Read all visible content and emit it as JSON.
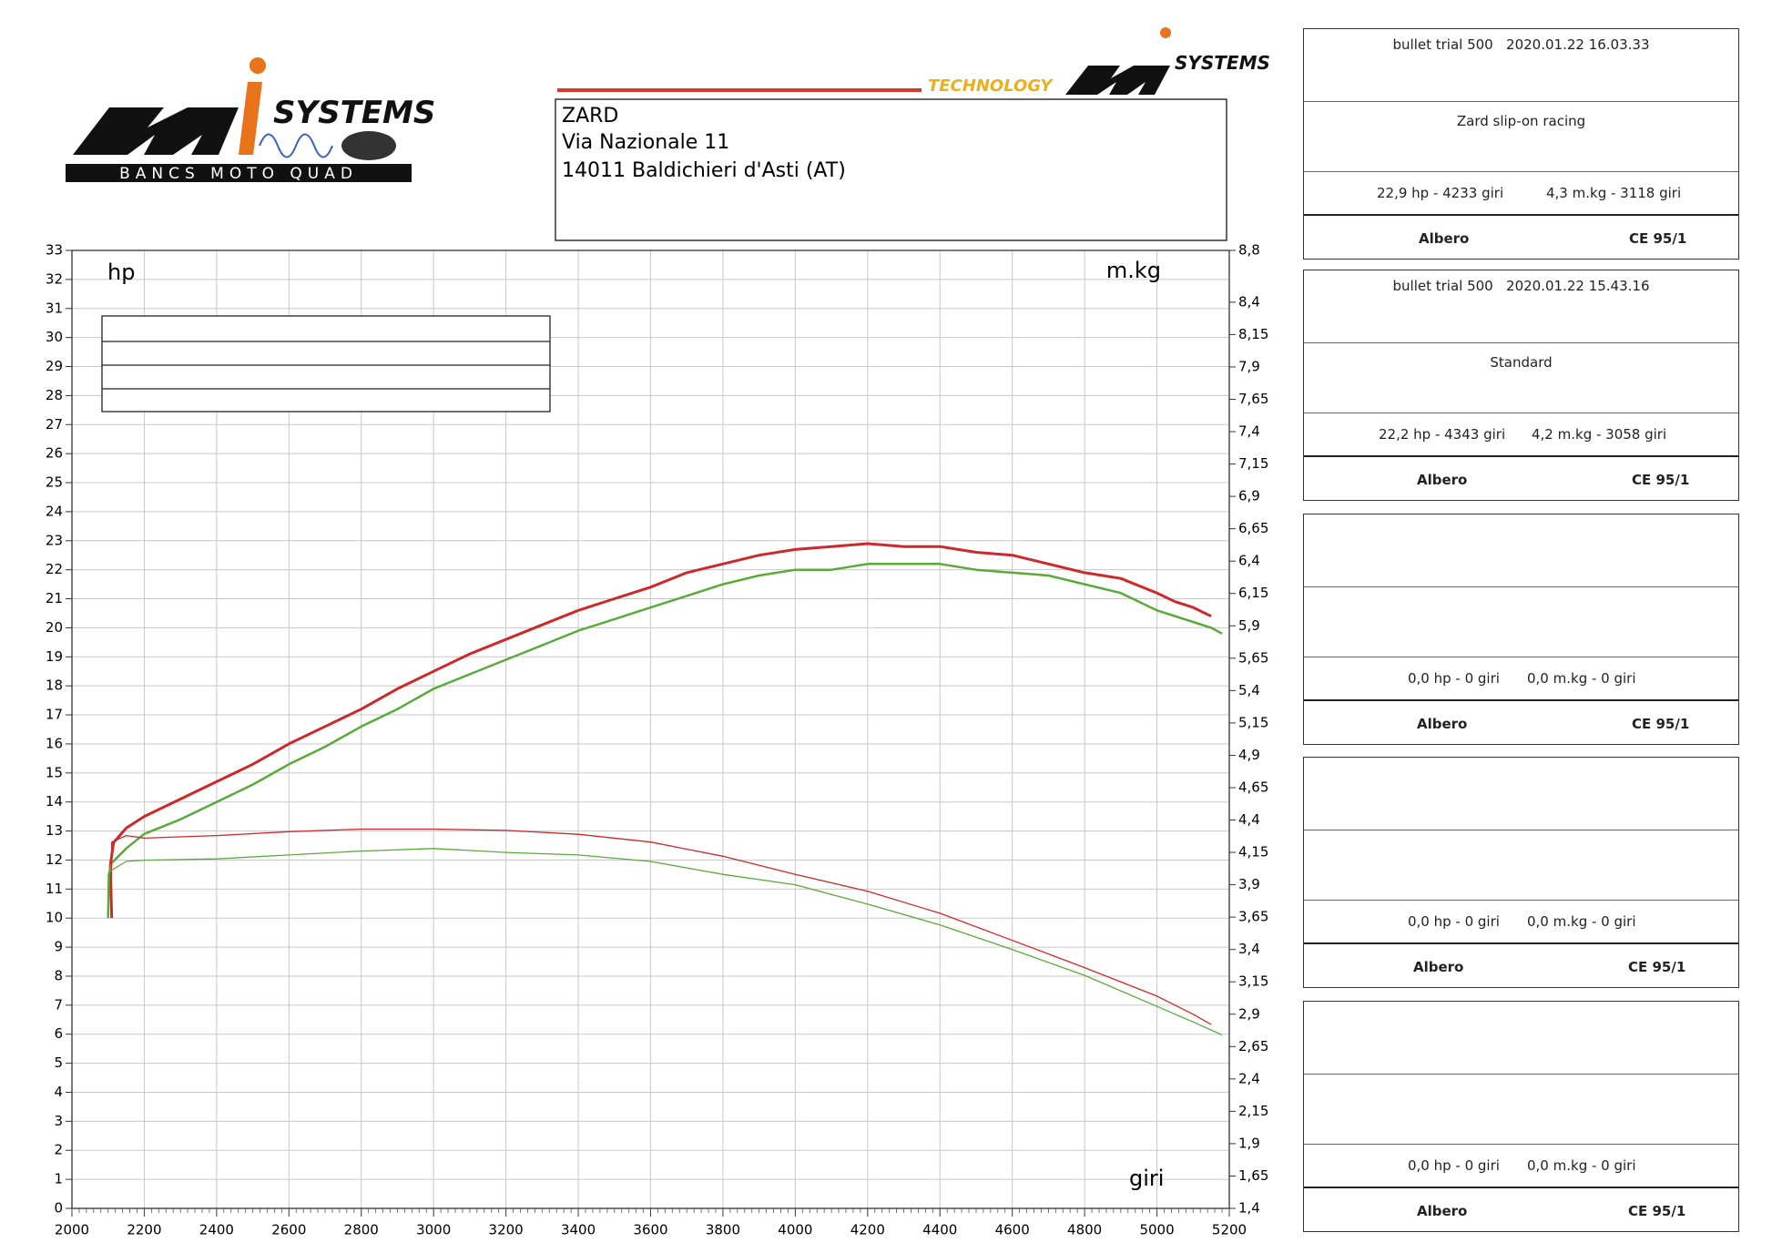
{
  "header": {
    "logo_left": {
      "brand": "SYSTEMS",
      "tagline": "BANCS MOTO QUAD"
    },
    "logo_right": {
      "tagline": "TECHNOLOGY",
      "brand": "SYSTEMS"
    },
    "address": [
      "ZARD",
      "Via Nazionale 11",
      "14011 Baldichieri d'Asti (AT)"
    ]
  },
  "chart_data": {
    "type": "line",
    "ylabel": "hp",
    "y2label": "m.kg",
    "xlabel": "giri",
    "xlim": [
      2000,
      5200
    ],
    "xticks": [
      2000,
      2200,
      2400,
      2600,
      2800,
      3000,
      3200,
      3400,
      3600,
      3800,
      4000,
      4200,
      4400,
      4600,
      4800,
      5000,
      5200
    ],
    "ylim": [
      0,
      33
    ],
    "yticks": [
      0,
      1,
      2,
      3,
      4,
      5,
      6,
      7,
      8,
      9,
      10,
      11,
      12,
      13,
      14,
      15,
      16,
      17,
      18,
      19,
      20,
      21,
      22,
      23,
      24,
      25,
      26,
      27,
      28,
      29,
      30,
      31,
      32,
      33
    ],
    "y2lim": [
      1.4,
      8.8
    ],
    "y2ticks": [
      {
        "value": 1.4,
        "label": "1,4"
      },
      {
        "value": 1.65,
        "label": "1,65"
      },
      {
        "value": 1.9,
        "label": "1,9"
      },
      {
        "value": 2.15,
        "label": "2,15"
      },
      {
        "value": 2.4,
        "label": "2,4"
      },
      {
        "value": 2.65,
        "label": "2,65"
      },
      {
        "value": 2.9,
        "label": "2,9"
      },
      {
        "value": 3.15,
        "label": "3,15"
      },
      {
        "value": 3.4,
        "label": "3,4"
      },
      {
        "value": 3.65,
        "label": "3,65"
      },
      {
        "value": 3.9,
        "label": "3,9"
      },
      {
        "value": 4.15,
        "label": "4,15"
      },
      {
        "value": 4.4,
        "label": "4,4"
      },
      {
        "value": 4.65,
        "label": "4,65"
      },
      {
        "value": 4.9,
        "label": "4,9"
      },
      {
        "value": 5.15,
        "label": "5,15"
      },
      {
        "value": 5.4,
        "label": "5,4"
      },
      {
        "value": 5.65,
        "label": "5,65"
      },
      {
        "value": 5.9,
        "label": "5,9"
      },
      {
        "value": 6.15,
        "label": "6,15"
      },
      {
        "value": 6.4,
        "label": "6,4"
      },
      {
        "value": 6.65,
        "label": "6,65"
      },
      {
        "value": 6.9,
        "label": "6,9"
      },
      {
        "value": 7.15,
        "label": "7,15"
      },
      {
        "value": 7.4,
        "label": "7,4"
      },
      {
        "value": 7.65,
        "label": "7,65"
      },
      {
        "value": 7.9,
        "label": "7,9"
      },
      {
        "value": 8.15,
        "label": "8,15"
      },
      {
        "value": 8.4,
        "label": "8,4"
      },
      {
        "value": 8.8,
        "label": "8,8"
      }
    ],
    "grid": true,
    "series": [
      {
        "color": "#cc2a2a",
        "width": 3,
        "x": [
          2110,
          2106,
          2115,
          2150,
          2200,
          2300,
          2400,
          2500,
          2600,
          2700,
          2800,
          2900,
          3000,
          3100,
          3200,
          3300,
          3400,
          3500,
          3600,
          3700,
          3800,
          3900,
          4000,
          4100,
          4200,
          4300,
          4400,
          4500,
          4600,
          4700,
          4800,
          4900,
          5000,
          5050,
          5100,
          5150
        ],
        "values": [
          10.0,
          11.8,
          12.6,
          13.1,
          13.5,
          14.1,
          14.7,
          15.3,
          16.0,
          16.6,
          17.2,
          17.9,
          18.5,
          19.1,
          19.6,
          20.1,
          20.6,
          21.0,
          21.4,
          21.9,
          22.2,
          22.5,
          22.7,
          22.8,
          22.9,
          22.8,
          22.8,
          22.6,
          22.5,
          22.2,
          21.9,
          21.7,
          21.2,
          20.9,
          20.7,
          20.4
        ]
      },
      {
        "color": "#5aaa3a",
        "width": 2.5,
        "x": [
          2100,
          2102,
          2110,
          2150,
          2200,
          2300,
          2400,
          2500,
          2600,
          2700,
          2800,
          2900,
          3000,
          3100,
          3200,
          3300,
          3400,
          3500,
          3600,
          3700,
          3800,
          3900,
          4000,
          4100,
          4200,
          4300,
          4400,
          4500,
          4600,
          4700,
          4800,
          4900,
          5000,
          5100,
          5150,
          5180
        ],
        "values": [
          10.0,
          11.5,
          11.9,
          12.4,
          12.9,
          13.4,
          14.0,
          14.6,
          15.3,
          15.9,
          16.6,
          17.2,
          17.9,
          18.4,
          18.9,
          19.4,
          19.9,
          20.3,
          20.7,
          21.1,
          21.5,
          21.8,
          22.0,
          22.0,
          22.2,
          22.2,
          22.2,
          22.0,
          21.9,
          21.8,
          21.5,
          21.2,
          20.6,
          20.2,
          20.0,
          19.8
        ]
      },
      {
        "color": "#cc2a2a",
        "width": 1.3,
        "axis": "y2",
        "x": [
          2108,
          2110,
          2150,
          2200,
          2400,
          2600,
          2800,
          3000,
          3200,
          3400,
          3600,
          3800,
          4000,
          4200,
          4400,
          4600,
          4800,
          5000,
          5100,
          5150
        ],
        "values": [
          3.66,
          4.23,
          4.28,
          4.26,
          4.28,
          4.31,
          4.33,
          4.33,
          4.32,
          4.29,
          4.23,
          4.12,
          3.98,
          3.85,
          3.68,
          3.47,
          3.26,
          3.04,
          2.9,
          2.82
        ]
      },
      {
        "color": "#5aaa3a",
        "width": 1.3,
        "axis": "y2",
        "x": [
          2100,
          2102,
          2150,
          2200,
          2400,
          2600,
          2800,
          3000,
          3200,
          3400,
          3600,
          3800,
          4000,
          4200,
          4400,
          4600,
          4800,
          5000,
          5100,
          5180
        ],
        "values": [
          3.66,
          4.0,
          4.08,
          4.09,
          4.1,
          4.13,
          4.16,
          4.18,
          4.15,
          4.13,
          4.08,
          3.98,
          3.9,
          3.75,
          3.59,
          3.4,
          3.2,
          2.96,
          2.84,
          2.74
        ]
      }
    ]
  },
  "panels": [
    {
      "run": "bullet trial 500   2020.01.22 16.03.33",
      "comment": "Zard slip-on racing",
      "power": "22,9 hp - 4233 giri",
      "torque": "4,3 m.kg - 3118 giri",
      "mode": "Albero",
      "norm": "CE 95/1"
    },
    {
      "run": "bullet trial 500   2020.01.22 15.43.16",
      "comment": "Standard",
      "power": "22,2 hp - 4343 giri",
      "torque": "4,2 m.kg - 3058 giri",
      "mode": "Albero",
      "norm": "CE 95/1"
    },
    {
      "power": "0,0 hp - 0 giri",
      "torque": "0,0 m.kg - 0 giri",
      "mode": "Albero",
      "norm": "CE 95/1"
    },
    {
      "power": "0,0 hp - 0 giri",
      "torque": "0,0 m.kg - 0 giri",
      "mode": "Albero",
      "norm": "CE 95/1"
    },
    {
      "power": "0,0 hp - 0 giri",
      "torque": "0,0 m.kg - 0 giri",
      "mode": "Albero",
      "norm": "CE 95/1"
    }
  ]
}
